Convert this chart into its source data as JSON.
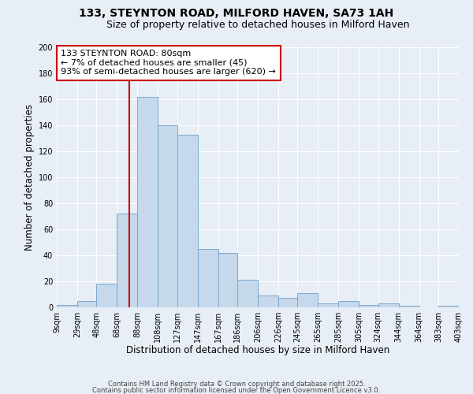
{
  "title1": "133, STEYNTON ROAD, MILFORD HAVEN, SA73 1AH",
  "title2": "Size of property relative to detached houses in Milford Haven",
  "xlabel": "Distribution of detached houses by size in Milford Haven",
  "ylabel": "Number of detached properties",
  "bins": [
    9,
    29,
    48,
    68,
    88,
    108,
    127,
    147,
    167,
    186,
    206,
    226,
    245,
    265,
    285,
    305,
    324,
    344,
    364,
    383,
    403
  ],
  "bin_labels": [
    "9sqm",
    "29sqm",
    "48sqm",
    "68sqm",
    "88sqm",
    "108sqm",
    "127sqm",
    "147sqm",
    "167sqm",
    "186sqm",
    "206sqm",
    "226sqm",
    "245sqm",
    "265sqm",
    "285sqm",
    "305sqm",
    "324sqm",
    "344sqm",
    "364sqm",
    "383sqm",
    "403sqm"
  ],
  "bar_heights": [
    2,
    5,
    18,
    72,
    162,
    140,
    133,
    45,
    42,
    21,
    9,
    7,
    11,
    3,
    5,
    2,
    3,
    1,
    0,
    1
  ],
  "bar_color": "#c5d8ec",
  "bar_edge_color": "#7aaace",
  "vline_x": 80,
  "vline_color": "#cc0000",
  "ylim": [
    0,
    200
  ],
  "yticks": [
    0,
    20,
    40,
    60,
    80,
    100,
    120,
    140,
    160,
    180,
    200
  ],
  "annotation_title": "133 STEYNTON ROAD: 80sqm",
  "annotation_line1": "← 7% of detached houses are smaller (45)",
  "annotation_line2": "93% of semi-detached houses are larger (620) →",
  "footer1": "Contains HM Land Registry data © Crown copyright and database right 2025.",
  "footer2": "Contains public sector information licensed under the Open Government Licence v3.0.",
  "bg_color": "#e8eef5",
  "plot_bg_color": "#e8eef5",
  "title_fontsize": 10,
  "subtitle_fontsize": 9,
  "axis_label_fontsize": 8.5,
  "tick_fontsize": 7,
  "annotation_fontsize": 8,
  "footer_fontsize": 6
}
